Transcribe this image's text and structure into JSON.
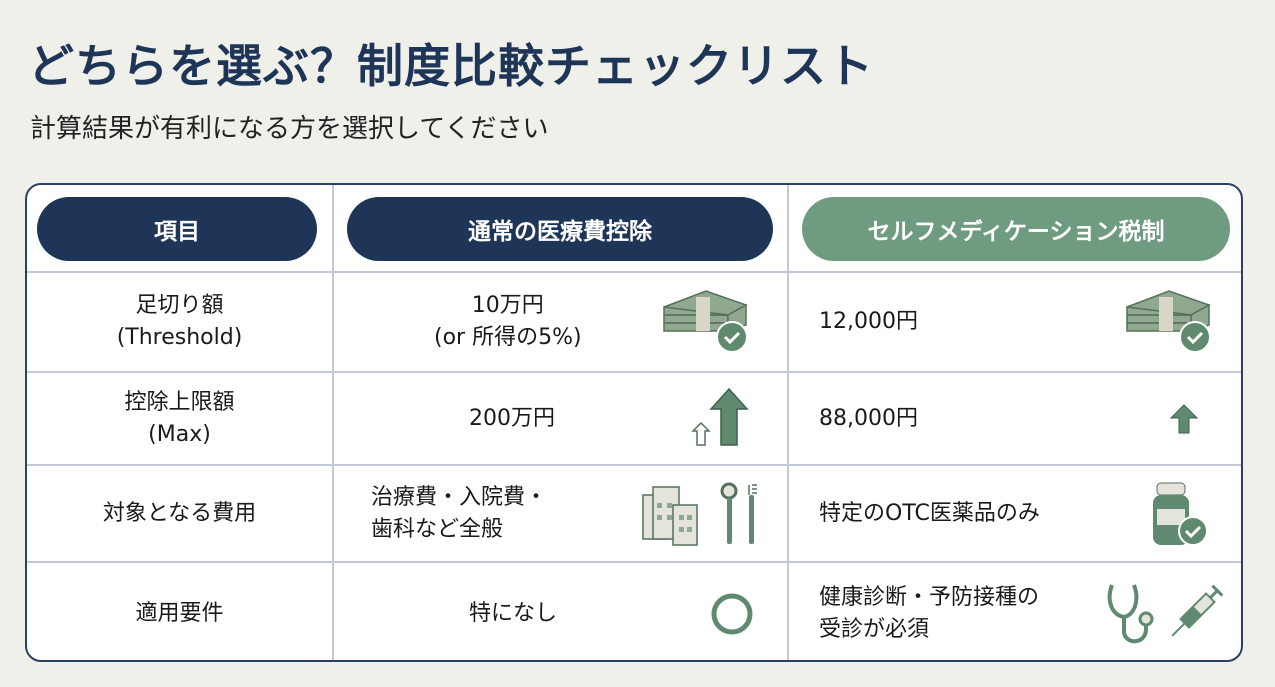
{
  "title": "どちらを選ぶ？制度比較チェックリスト",
  "subtitle": "計算結果が有利になる方を選択してください",
  "colors": {
    "navy": "#1f3557",
    "green": "#6f9c80",
    "icon_green": "#5f8a70"
  },
  "headers": [
    "項目",
    "通常の医療費控除",
    "セルフメディケーション税制"
  ],
  "rows": [
    {
      "item": [
        "足切り額",
        "(Threshold)"
      ],
      "normal": [
        "10万円",
        "(or 所得の5%)"
      ],
      "normal_icon": "money-check-icon",
      "self": [
        "12,000円"
      ],
      "self_icon": "money-check-icon"
    },
    {
      "item": [
        "控除上限額",
        "(Max)"
      ],
      "normal": [
        "200万円"
      ],
      "normal_icon": "arrow-up-large-icon",
      "self": [
        "88,000円"
      ],
      "self_icon": "arrow-up-small-icon"
    },
    {
      "item": [
        "対象となる費用"
      ],
      "normal": [
        "治療費・入院費・",
        "歯科など全般"
      ],
      "normal_icon": "hospital-dental-icon",
      "self": [
        "特定のOTC医薬品のみ"
      ],
      "self_icon": "medicine-bottle-check-icon"
    },
    {
      "item": [
        "適用要件"
      ],
      "normal": [
        "特になし"
      ],
      "normal_icon": "circle-icon",
      "self": [
        "健康診断・予防接種の",
        "受診が必須"
      ],
      "self_icon": "stethoscope-syringe-icon"
    }
  ]
}
